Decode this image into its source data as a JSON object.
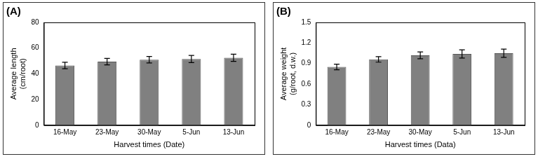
{
  "chart_data": [
    {
      "type": "bar",
      "title": "(A)",
      "x_label": "Harvest times (Date)",
      "y_label": [
        "Average length",
        "(cm/root)"
      ],
      "categories": [
        "16-May",
        "23-May",
        "30-May",
        "5-Jun",
        "13-Jun"
      ],
      "values": [
        46.5,
        49.5,
        51,
        51.5,
        52.5
      ],
      "errors": [
        2.5,
        2.5,
        2.5,
        2.8,
        2.8
      ],
      "color": "#808080",
      "ylim": [
        0,
        80
      ],
      "yticks": [
        0,
        20,
        40,
        60,
        80
      ],
      "grid": false
    },
    {
      "type": "bar",
      "title": "(B)",
      "x_label": "Harvest times (Data)",
      "y_label": [
        "Average weight",
        "(g/root, d.w.)"
      ],
      "categories": [
        "16-May",
        "23-May",
        "30-May",
        "5-Jun",
        "13-Jun"
      ],
      "values": [
        0.85,
        0.96,
        1.02,
        1.04,
        1.05
      ],
      "errors": [
        0.04,
        0.04,
        0.05,
        0.06,
        0.06
      ],
      "color": "#808080",
      "ylim": [
        0,
        1.5
      ],
      "yticks": [
        0,
        0.3,
        0.6,
        0.9,
        1.2,
        1.5
      ],
      "grid": false
    }
  ]
}
